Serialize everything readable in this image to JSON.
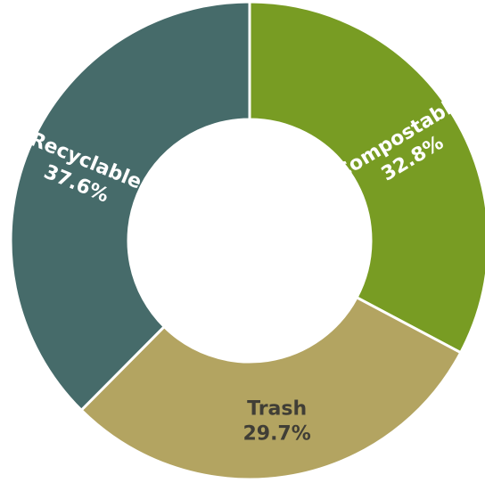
{
  "chart_data": {
    "type": "pie",
    "donut": true,
    "slices": [
      {
        "label": "Compostable",
        "value": 32.8,
        "display": "32.8%",
        "color": "#789c23",
        "text_color": "#ffffff"
      },
      {
        "label": "Trash",
        "value": 29.7,
        "display": "29.7%",
        "color": "#b3a461",
        "text_color": "#403e36"
      },
      {
        "label": "Recyclable",
        "value": 37.6,
        "display": "37.6%",
        "color": "#466b6a",
        "text_color": "#ffffff"
      }
    ]
  }
}
